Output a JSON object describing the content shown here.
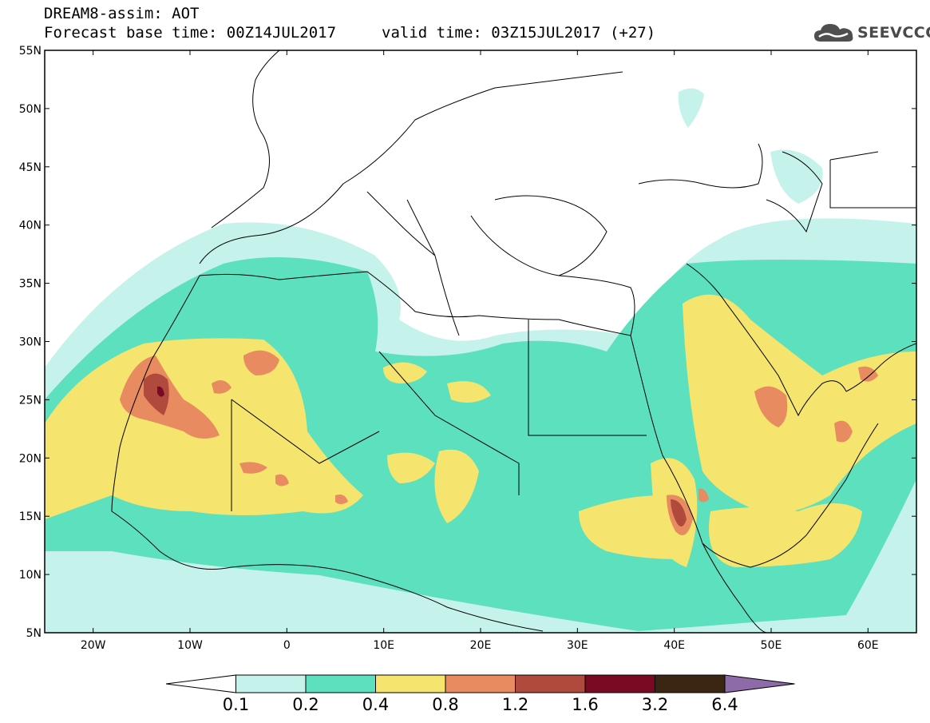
{
  "title": {
    "line1": "DREAM8-assim: AOT",
    "line2": "Forecast base time: 00Z14JUL2017",
    "valid": "valid time: 03Z15JUL2017 (+27)"
  },
  "logo": {
    "text": "SEEVCCC",
    "icon": "cloud-icon"
  },
  "map": {
    "lat_ticks": [
      "55N",
      "50N",
      "45N",
      "40N",
      "35N",
      "30N",
      "25N",
      "20N",
      "15N",
      "10N",
      "5N"
    ],
    "lon_ticks": [
      "20W",
      "10W",
      "0",
      "10E",
      "20E",
      "30E",
      "40E",
      "50E",
      "60E"
    ],
    "lon_range": [
      -25,
      65
    ],
    "lat_range": [
      5,
      55
    ]
  },
  "colorbar": {
    "labels": [
      "0.1",
      "0.2",
      "0.4",
      "0.8",
      "1.2",
      "1.6",
      "3.2",
      "6.4"
    ],
    "colors": [
      "#ffffff",
      "#c6f2ec",
      "#5ce0bd",
      "#f5e46e",
      "#e88b60",
      "#b04a3c",
      "#7a0a24",
      "#3a2612",
      "#8e6aa8"
    ]
  }
}
